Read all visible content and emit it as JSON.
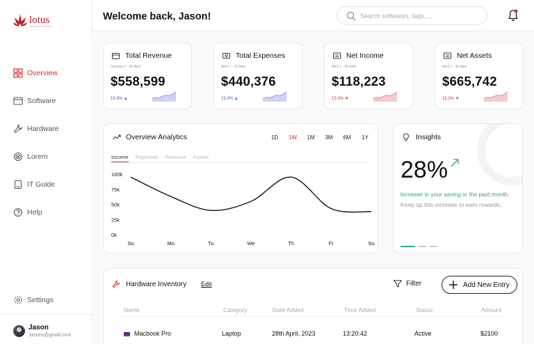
{
  "sidebar": {
    "logo_text": "lotus",
    "logo_tagline": "Software & IT Solutions",
    "items": [
      {
        "label": "Overview",
        "icon": "grid-icon",
        "active": true
      },
      {
        "label": "Software",
        "icon": "window-icon"
      },
      {
        "label": "Hardware",
        "icon": "wrench-icon"
      },
      {
        "label": "Lorem",
        "icon": "target-icon"
      },
      {
        "label": "IT Guide",
        "icon": "book-icon"
      },
      {
        "label": "Help",
        "icon": "help-icon"
      }
    ],
    "settings_label": "Settings",
    "user": {
      "name": "Jason",
      "email": "Jasons@gmail.com"
    }
  },
  "header": {
    "welcome": "Welcome back, Jason!",
    "search_placeholder": "Search softwares, faqs, ..."
  },
  "stats": [
    {
      "title": "Total Revenue",
      "date": "January 1 - 30 April",
      "value": "$558,599",
      "change": "15.3%",
      "trend": "up",
      "color": "#3b4fd8",
      "spark": [
        3,
        4,
        3.5,
        5,
        6,
        5.5,
        7,
        9
      ]
    },
    {
      "title": "Total Expenses",
      "date": "April 1 - 30 April",
      "value": "$440,376",
      "change": "15.3%",
      "trend": "up",
      "color": "#3b4fd8",
      "spark": [
        3,
        4,
        3.5,
        5,
        6,
        5.5,
        7,
        9
      ]
    },
    {
      "title": "Net Income",
      "date": "April 1 - 30 April",
      "value": "$118,223",
      "change": "15.3%",
      "trend": "down",
      "color": "#d0302e",
      "spark": [
        3,
        4,
        3.5,
        5,
        6,
        5.5,
        7,
        9
      ]
    },
    {
      "title": "Net Assets",
      "date": "April 1 - 30 April",
      "value": "$665,742",
      "change": "15.3%",
      "trend": "down",
      "color": "#d0302e",
      "spark": [
        3,
        4,
        3.5,
        5,
        6,
        5.5,
        7,
        9
      ]
    }
  ],
  "overview": {
    "title": "Overview Analytics",
    "ranges": [
      "1D",
      "1W",
      "1M",
      "3M",
      "6M",
      "1Y"
    ],
    "active_range": "1W",
    "tabs": [
      "Income",
      "Expenses",
      "Revenue",
      "Assets"
    ],
    "active_tab": "Income"
  },
  "chart_data": {
    "type": "line",
    "x": [
      "Su",
      "Mo",
      "Tu",
      "We",
      "Th",
      "Fr",
      "Su"
    ],
    "y_ticks": [
      "100k",
      "75k",
      "50k",
      "25k",
      "0k"
    ],
    "ylim": [
      0,
      100000
    ],
    "series": [
      {
        "values": [
          95000,
          63000,
          40000,
          55000,
          95000,
          43000,
          38000
        ]
      }
    ]
  },
  "insights": {
    "title": "Insights",
    "value": "28%",
    "text_highlight": "increase in your saving in the past month.",
    "text_secondary": "Keep up this increase to earn rewards."
  },
  "inventory": {
    "title": "Hardware Inventory",
    "edit_label": "Edit",
    "filter_label": "Filter",
    "add_label": "Add New Entry",
    "columns": [
      "Name",
      "Category",
      "Date Added",
      "Time Added",
      "Status",
      "Amount"
    ],
    "rows": [
      {
        "name": "Macbook Pro",
        "category": "Laptop",
        "date": "28th April, 2023",
        "time": "13:20:42",
        "status": "Active",
        "amount": "$2100"
      }
    ]
  }
}
